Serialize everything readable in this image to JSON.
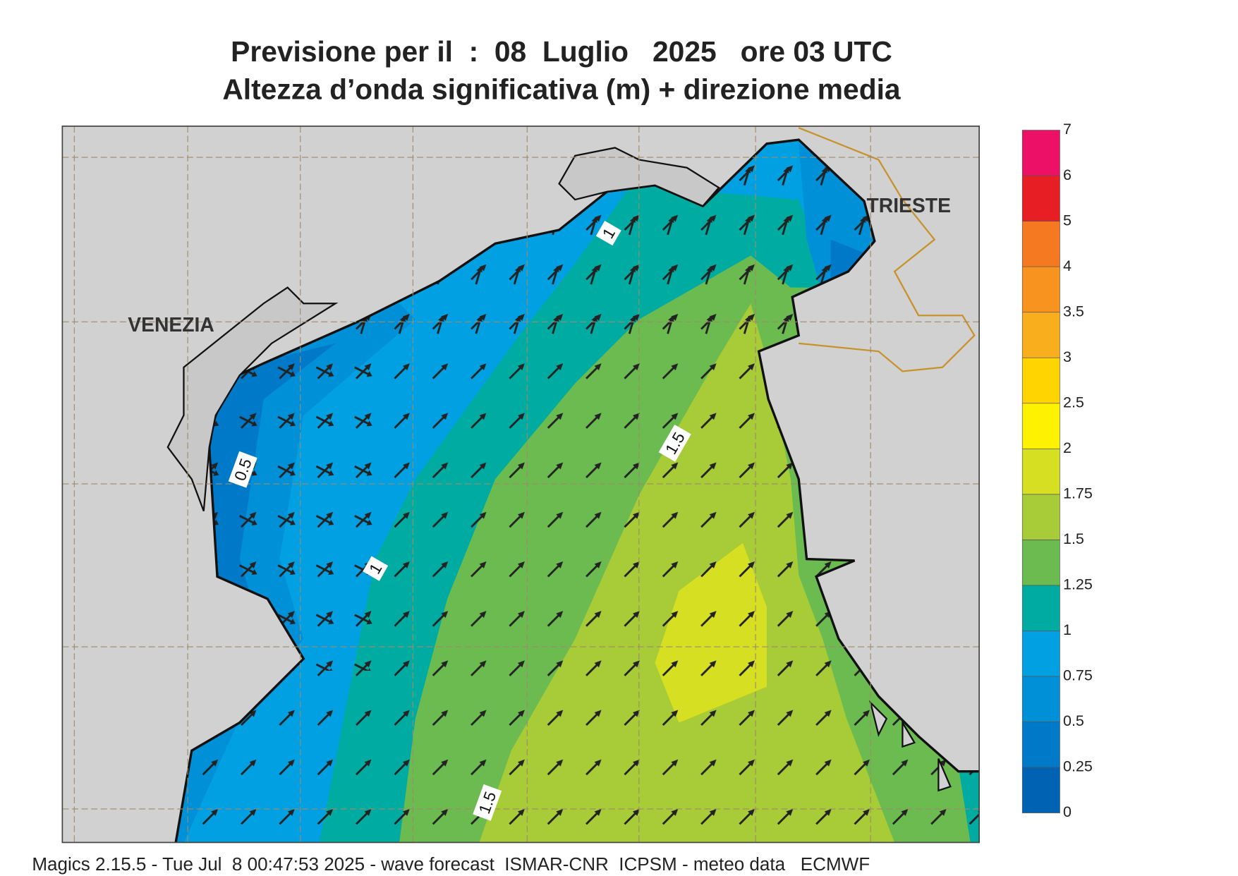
{
  "header": {
    "title_line1": "Previsione per il  :  08  Luglio   2025   ore 03 UTC",
    "title_line2": "Altezza d’onda significativa (m) + direzione media"
  },
  "map": {
    "places": [
      {
        "label": "VENEZIA"
      },
      {
        "label": "TRIESTE"
      }
    ],
    "contour_labels": [
      "1",
      "0.5",
      "1.5",
      "1",
      "1.5"
    ]
  },
  "colorbar": {
    "levels": [
      0,
      0.25,
      0.5,
      0.75,
      1,
      1.25,
      1.5,
      1.75,
      2,
      2.5,
      3,
      3.5,
      4,
      5,
      6,
      7
    ],
    "colors": [
      "#0062b2",
      "#0079c9",
      "#0090d8",
      "#00a0e2",
      "#00aca2",
      "#6bbb50",
      "#a8cb38",
      "#d6df22",
      "#fff200",
      "#ffd400",
      "#f9ae1e",
      "#f7931e",
      "#f47920",
      "#e81e25",
      "#ec1166"
    ]
  },
  "footer": "Magics 2.15.5 - Tue Jul  8 00:47:53 2025 - wave forecast  ISMAR-CNR  ICPSM - meteo data   ECMWF"
}
